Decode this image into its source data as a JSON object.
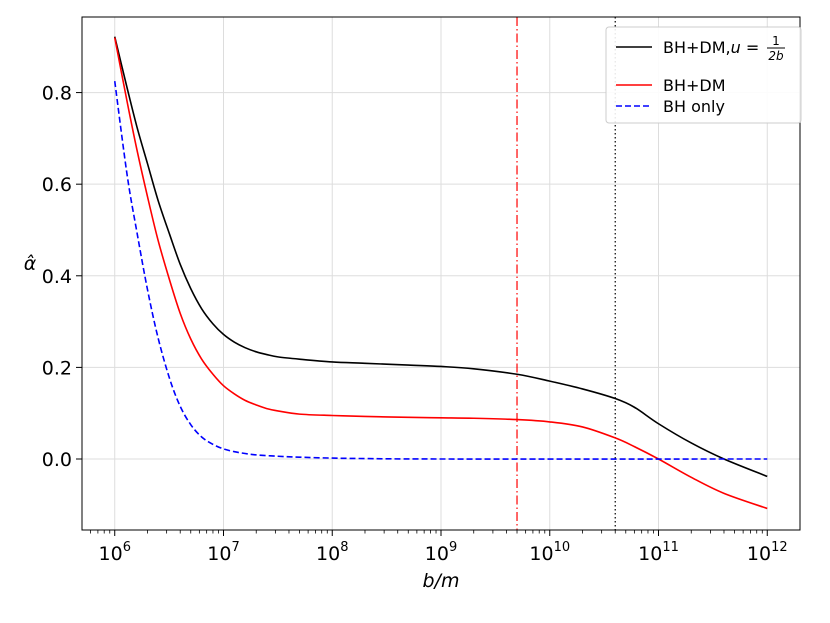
{
  "chart_data": {
    "type": "line",
    "xscale": "log",
    "xlabel": "b/m",
    "ylabel": "α̂",
    "xlim": [
      500000,
      2000000000000
    ],
    "ylim": [
      -0.155,
      0.965
    ],
    "grid": true,
    "legend_position": "top-right",
    "x_ticks": [
      {
        "value": 1000000,
        "base": "10",
        "exp": "6"
      },
      {
        "value": 10000000,
        "base": "10",
        "exp": "7"
      },
      {
        "value": 100000000,
        "base": "10",
        "exp": "8"
      },
      {
        "value": 1000000000,
        "base": "10",
        "exp": "9"
      },
      {
        "value": 10000000000,
        "base": "10",
        "exp": "10"
      },
      {
        "value": 100000000000,
        "base": "10",
        "exp": "11"
      },
      {
        "value": 1000000000000,
        "base": "10",
        "exp": "12"
      }
    ],
    "y_ticks": [
      {
        "value": 0.0,
        "label": "0.0"
      },
      {
        "value": 0.2,
        "label": "0.2"
      },
      {
        "value": 0.4,
        "label": "0.4"
      },
      {
        "value": 0.6,
        "label": "0.6"
      },
      {
        "value": 0.8,
        "label": "0.8"
      }
    ],
    "series": [
      {
        "name": "BH+DM,u = 1/2b",
        "legend_main": "BH+DM,",
        "legend_var": "u",
        "legend_eq": " = ",
        "legend_num": "1",
        "legend_den": "2b",
        "color": "#000000",
        "dash": "solid",
        "x": [
          1000000,
          1300000,
          1600000,
          2000000,
          2500000,
          3200000,
          4000000,
          5000000,
          6300000,
          8000000,
          10000000,
          12600000,
          15800000,
          20000000,
          25000000,
          31600000,
          50000000,
          100000000,
          200000000,
          500000000,
          1000000000,
          2000000000,
          5000000000,
          10000000000,
          20000000000,
          40000000000,
          60000000000,
          100000000000,
          200000000000,
          400000000000,
          1000000000000
        ],
        "y": [
          0.922,
          0.81,
          0.725,
          0.645,
          0.565,
          0.49,
          0.425,
          0.372,
          0.328,
          0.295,
          0.272,
          0.255,
          0.243,
          0.234,
          0.228,
          0.223,
          0.218,
          0.212,
          0.209,
          0.205,
          0.202,
          0.197,
          0.185,
          0.17,
          0.153,
          0.132,
          0.113,
          0.077,
          0.035,
          0.0,
          -0.038
        ]
      },
      {
        "name": "BH+DM",
        "color": "#ff0000",
        "dash": "solid",
        "x": [
          1000000,
          1300000,
          1600000,
          2000000,
          2500000,
          3200000,
          4000000,
          5000000,
          6300000,
          8000000,
          10000000,
          12600000,
          15800000,
          20000000,
          25000000,
          31600000,
          50000000,
          100000000,
          200000000,
          500000000,
          1000000000,
          2000000000,
          5000000000,
          10000000000,
          20000000000,
          40000000000,
          60000000000,
          100000000000,
          200000000000,
          400000000000,
          1000000000000
        ],
        "y": [
          0.92,
          0.78,
          0.675,
          0.573,
          0.478,
          0.39,
          0.318,
          0.262,
          0.218,
          0.185,
          0.16,
          0.142,
          0.128,
          0.118,
          0.11,
          0.105,
          0.098,
          0.095,
          0.093,
          0.091,
          0.09,
          0.089,
          0.086,
          0.081,
          0.07,
          0.046,
          0.027,
          0.0,
          -0.04,
          -0.075,
          -0.108
        ]
      },
      {
        "name": "BH only",
        "color": "#0000ff",
        "dash": "dashed",
        "x": [
          1000000,
          1300000,
          1600000,
          2000000,
          2500000,
          3200000,
          4000000,
          5000000,
          6300000,
          8000000,
          10000000,
          12600000,
          15800000,
          20000000,
          31600000,
          50000000,
          100000000,
          200000000,
          1000000000,
          1000000000000
        ],
        "y": [
          0.825,
          0.62,
          0.495,
          0.37,
          0.265,
          0.175,
          0.115,
          0.075,
          0.048,
          0.032,
          0.022,
          0.016,
          0.012,
          0.009,
          0.006,
          0.004,
          0.002,
          0.001,
          0.0,
          0.0
        ]
      }
    ],
    "vlines": [
      {
        "x": 5000000000,
        "color": "#ff0000",
        "dash": "dashdot"
      },
      {
        "x": 40000000000,
        "color": "#000000",
        "dash": "dotted"
      }
    ]
  }
}
